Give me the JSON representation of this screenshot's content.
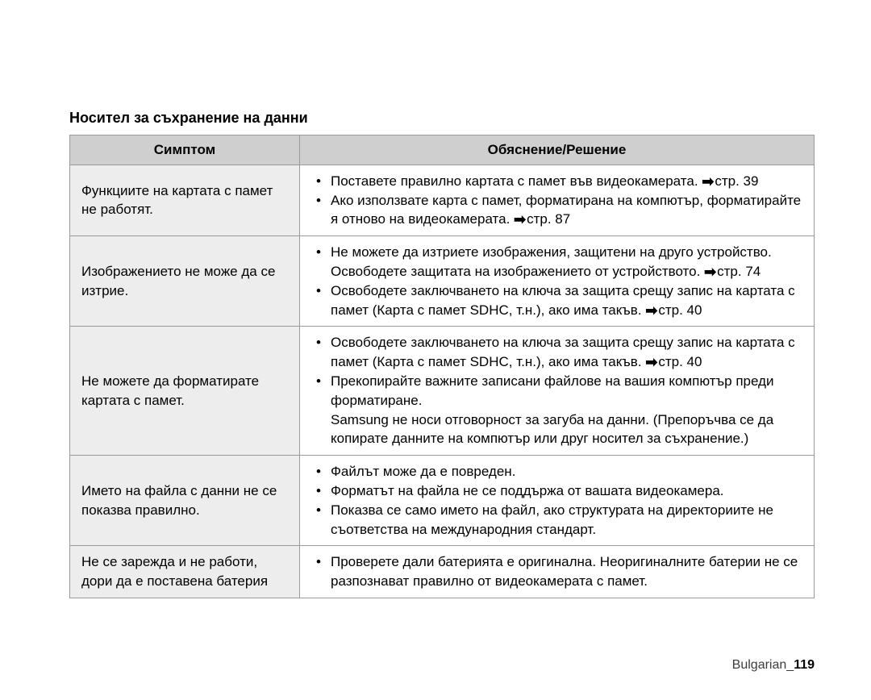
{
  "section_title": "Носител за съхранение на данни",
  "headers": {
    "symptom": "Симптом",
    "solution": "Обяснение/Решение"
  },
  "rows": [
    {
      "symptom": "Функциите на картата с памет не работят.",
      "items": [
        {
          "text": "Поставете правилно картата с памет във видеокамерата. ",
          "page": "стр. 39"
        },
        {
          "text": "Ако използвате карта с памет, форматирана на компютър, форматирайте я отново на видеокамерата. ",
          "page": "стр. 87"
        }
      ]
    },
    {
      "symptom": "Изображението не може да се изтрие.",
      "items": [
        {
          "text": "Не можете да изтриете изображения, защитени на друго устройство. Освободете защитата на изображението от устройството. ",
          "page": "стр. 74"
        },
        {
          "text": "Освободете заключването на ключа за защита срещу запис на картата с памет (Карта с памет SDHC, т.н.), ако има такъв. ",
          "page": "стр. 40"
        }
      ]
    },
    {
      "symptom": "Не можете да форматирате картата с памет.",
      "items": [
        {
          "text": "Освободете заключването на ключа за защита срещу запис на картата с памет (Карта с памет SDHC, т.н.), ако има такъв. ",
          "page": "стр. 40"
        },
        {
          "text": "Прекопирайте важните записани файлове на вашия компютър преди форматиране.\nSamsung не носи отговорност за загуба на данни. (Препоръчва се да копирате данните на компютър или друг носител за съхранение.)"
        }
      ]
    },
    {
      "symptom": "Името на файла с данни не се показва правилно.",
      "items": [
        {
          "text": "Файлът може да е повреден."
        },
        {
          "text": "Форматът на файла не се поддържа от вашата видеокамера."
        },
        {
          "text": "Показва се само името на файл, ако структурата на директориите не съответства на международния стандарт."
        }
      ]
    },
    {
      "symptom": "Не се зарежда и не работи, дори да е поставена батерия",
      "items": [
        {
          "text": "Проверете дали батерията е оригинална. Неоригиналните батерии не се разпознават правилно от видеокамерата с памет."
        }
      ]
    }
  ],
  "footer": {
    "lang": "Bulgarian",
    "page": "119"
  },
  "arrow_glyph": "➡"
}
